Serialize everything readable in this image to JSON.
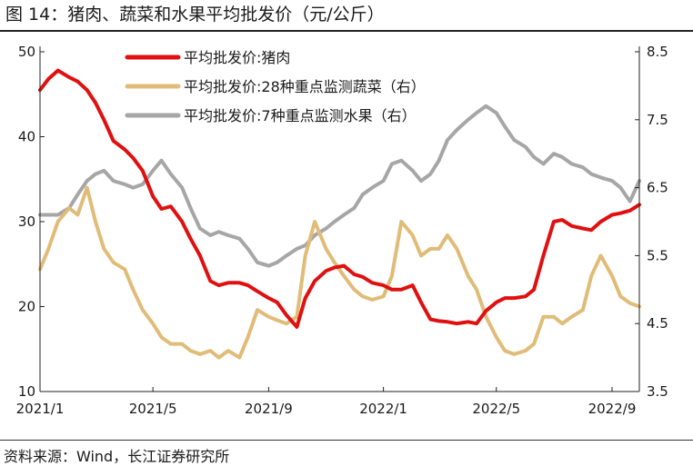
{
  "figure": {
    "title": "图 14：猪肉、蔬菜和水果平均批发价（元/公斤）",
    "source": "资料来源：Wind，长江证券研究所"
  },
  "colors": {
    "pork": "#e01010",
    "vegetable": "#e0bc78",
    "fruit": "#a6a6a6"
  },
  "chart_data": {
    "type": "line",
    "title": "猪肉、蔬菜和水果平均批发价（元/公斤）",
    "legend_position": "top-center",
    "grid": false,
    "x_ticks": [
      "2021/1",
      "2021/5",
      "2021/9",
      "2022/1",
      "2022/5",
      "2022/9"
    ],
    "x_range": [
      "2021-01-01",
      "2022-09-30"
    ],
    "y_left": {
      "range": [
        10,
        50
      ],
      "ticks": [
        10,
        20,
        30,
        40,
        50
      ]
    },
    "y_right": {
      "range": [
        3.5,
        8.5
      ],
      "ticks": [
        3.5,
        4.5,
        5.5,
        6.5,
        7.5,
        8.5
      ]
    },
    "series": [
      {
        "name": "平均批发价:猪肉",
        "axis": "left",
        "color": "#e01010",
        "points": [
          [
            "2021-01-01",
            45.5
          ],
          [
            "2021-01-10",
            46.8
          ],
          [
            "2021-01-20",
            47.8
          ],
          [
            "2021-02-01",
            47.0
          ],
          [
            "2021-02-10",
            46.5
          ],
          [
            "2021-02-20",
            45.5
          ],
          [
            "2021-03-01",
            44.0
          ],
          [
            "2021-03-10",
            42.0
          ],
          [
            "2021-03-20",
            39.5
          ],
          [
            "2021-04-01",
            38.5
          ],
          [
            "2021-04-10",
            37.5
          ],
          [
            "2021-04-20",
            36.0
          ],
          [
            "2021-05-01",
            33.0
          ],
          [
            "2021-05-10",
            31.5
          ],
          [
            "2021-05-20",
            31.8
          ],
          [
            "2021-06-01",
            30.0
          ],
          [
            "2021-06-10",
            28.0
          ],
          [
            "2021-06-20",
            26.0
          ],
          [
            "2021-07-01",
            23.0
          ],
          [
            "2021-07-10",
            22.5
          ],
          [
            "2021-07-20",
            22.8
          ],
          [
            "2021-08-01",
            22.8
          ],
          [
            "2021-08-10",
            22.5
          ],
          [
            "2021-08-20",
            21.8
          ],
          [
            "2021-09-01",
            21.0
          ],
          [
            "2021-09-10",
            20.5
          ],
          [
            "2021-09-20",
            19.0
          ],
          [
            "2021-10-01",
            17.6
          ],
          [
            "2021-10-10",
            21.0
          ],
          [
            "2021-10-20",
            23.0
          ],
          [
            "2021-11-01",
            24.2
          ],
          [
            "2021-11-10",
            24.6
          ],
          [
            "2021-11-20",
            24.8
          ],
          [
            "2021-12-01",
            23.8
          ],
          [
            "2021-12-10",
            23.5
          ],
          [
            "2021-12-20",
            22.8
          ],
          [
            "2022-01-01",
            22.5
          ],
          [
            "2022-01-10",
            22.0
          ],
          [
            "2022-01-20",
            22.0
          ],
          [
            "2022-02-01",
            22.5
          ],
          [
            "2022-02-10",
            20.5
          ],
          [
            "2022-02-20",
            18.5
          ],
          [
            "2022-03-01",
            18.3
          ],
          [
            "2022-03-10",
            18.2
          ],
          [
            "2022-03-20",
            18.0
          ],
          [
            "2022-04-01",
            18.2
          ],
          [
            "2022-04-10",
            18.0
          ],
          [
            "2022-04-20",
            19.5
          ],
          [
            "2022-05-01",
            20.5
          ],
          [
            "2022-05-10",
            21.0
          ],
          [
            "2022-05-20",
            21.0
          ],
          [
            "2022-06-01",
            21.2
          ],
          [
            "2022-06-10",
            22.0
          ],
          [
            "2022-06-20",
            26.0
          ],
          [
            "2022-07-01",
            30.0
          ],
          [
            "2022-07-10",
            30.2
          ],
          [
            "2022-07-20",
            29.5
          ],
          [
            "2022-08-01",
            29.2
          ],
          [
            "2022-08-10",
            29.0
          ],
          [
            "2022-08-20",
            30.0
          ],
          [
            "2022-09-01",
            30.8
          ],
          [
            "2022-09-10",
            31.0
          ],
          [
            "2022-09-20",
            31.3
          ],
          [
            "2022-09-30",
            32.0
          ]
        ]
      },
      {
        "name": "平均批发价:28种重点监测蔬菜（右）",
        "axis": "right",
        "color": "#e0bc78",
        "points": [
          [
            "2021-01-01",
            5.3
          ],
          [
            "2021-01-10",
            5.6
          ],
          [
            "2021-01-20",
            6.0
          ],
          [
            "2021-02-01",
            6.2
          ],
          [
            "2021-02-10",
            6.1
          ],
          [
            "2021-02-20",
            6.5
          ],
          [
            "2021-03-01",
            6.0
          ],
          [
            "2021-03-10",
            5.6
          ],
          [
            "2021-03-20",
            5.4
          ],
          [
            "2021-04-01",
            5.3
          ],
          [
            "2021-04-10",
            5.0
          ],
          [
            "2021-04-20",
            4.7
          ],
          [
            "2021-05-01",
            4.5
          ],
          [
            "2021-05-10",
            4.3
          ],
          [
            "2021-05-20",
            4.2
          ],
          [
            "2021-06-01",
            4.2
          ],
          [
            "2021-06-10",
            4.1
          ],
          [
            "2021-06-20",
            4.05
          ],
          [
            "2021-07-01",
            4.1
          ],
          [
            "2021-07-10",
            4.0
          ],
          [
            "2021-07-20",
            4.1
          ],
          [
            "2021-08-01",
            4.0
          ],
          [
            "2021-08-10",
            4.3
          ],
          [
            "2021-08-20",
            4.7
          ],
          [
            "2021-09-01",
            4.6
          ],
          [
            "2021-09-10",
            4.55
          ],
          [
            "2021-09-20",
            4.5
          ],
          [
            "2021-10-01",
            4.6
          ],
          [
            "2021-10-10",
            5.5
          ],
          [
            "2021-10-20",
            6.0
          ],
          [
            "2021-11-01",
            5.6
          ],
          [
            "2021-11-10",
            5.4
          ],
          [
            "2021-11-20",
            5.2
          ],
          [
            "2021-12-01",
            5.0
          ],
          [
            "2021-12-10",
            4.9
          ],
          [
            "2021-12-20",
            4.85
          ],
          [
            "2022-01-01",
            4.9
          ],
          [
            "2022-01-10",
            5.2
          ],
          [
            "2022-01-20",
            6.0
          ],
          [
            "2022-02-01",
            5.8
          ],
          [
            "2022-02-10",
            5.5
          ],
          [
            "2022-02-20",
            5.6
          ],
          [
            "2022-03-01",
            5.6
          ],
          [
            "2022-03-10",
            5.8
          ],
          [
            "2022-03-20",
            5.6
          ],
          [
            "2022-04-01",
            5.2
          ],
          [
            "2022-04-10",
            5.0
          ],
          [
            "2022-04-20",
            4.6
          ],
          [
            "2022-05-01",
            4.3
          ],
          [
            "2022-05-10",
            4.1
          ],
          [
            "2022-05-20",
            4.05
          ],
          [
            "2022-06-01",
            4.1
          ],
          [
            "2022-06-10",
            4.2
          ],
          [
            "2022-06-20",
            4.6
          ],
          [
            "2022-07-01",
            4.6
          ],
          [
            "2022-07-10",
            4.5
          ],
          [
            "2022-07-20",
            4.6
          ],
          [
            "2022-08-01",
            4.7
          ],
          [
            "2022-08-10",
            5.2
          ],
          [
            "2022-08-20",
            5.5
          ],
          [
            "2022-09-01",
            5.2
          ],
          [
            "2022-09-10",
            4.9
          ],
          [
            "2022-09-20",
            4.8
          ],
          [
            "2022-09-30",
            4.75
          ]
        ]
      },
      {
        "name": "平均批发价:7种重点监测水果（右）",
        "axis": "right",
        "color": "#a6a6a6",
        "points": [
          [
            "2021-01-01",
            6.1
          ],
          [
            "2021-01-10",
            6.1
          ],
          [
            "2021-01-20",
            6.1
          ],
          [
            "2021-02-01",
            6.2
          ],
          [
            "2021-02-10",
            6.4
          ],
          [
            "2021-02-20",
            6.6
          ],
          [
            "2021-03-01",
            6.7
          ],
          [
            "2021-03-10",
            6.75
          ],
          [
            "2021-03-20",
            6.6
          ],
          [
            "2021-04-01",
            6.55
          ],
          [
            "2021-04-10",
            6.5
          ],
          [
            "2021-04-20",
            6.55
          ],
          [
            "2021-05-01",
            6.75
          ],
          [
            "2021-05-10",
            6.9
          ],
          [
            "2021-05-20",
            6.7
          ],
          [
            "2021-06-01",
            6.5
          ],
          [
            "2021-06-10",
            6.2
          ],
          [
            "2021-06-20",
            5.9
          ],
          [
            "2021-07-01",
            5.8
          ],
          [
            "2021-07-10",
            5.85
          ],
          [
            "2021-07-20",
            5.8
          ],
          [
            "2021-08-01",
            5.75
          ],
          [
            "2021-08-10",
            5.6
          ],
          [
            "2021-08-20",
            5.4
          ],
          [
            "2021-09-01",
            5.35
          ],
          [
            "2021-09-10",
            5.4
          ],
          [
            "2021-09-20",
            5.5
          ],
          [
            "2021-10-01",
            5.6
          ],
          [
            "2021-10-10",
            5.65
          ],
          [
            "2021-10-20",
            5.8
          ],
          [
            "2021-11-01",
            5.9
          ],
          [
            "2021-11-10",
            6.0
          ],
          [
            "2021-11-20",
            6.1
          ],
          [
            "2021-12-01",
            6.2
          ],
          [
            "2021-12-10",
            6.4
          ],
          [
            "2021-12-20",
            6.5
          ],
          [
            "2022-01-01",
            6.6
          ],
          [
            "2022-01-10",
            6.85
          ],
          [
            "2022-01-20",
            6.9
          ],
          [
            "2022-02-01",
            6.75
          ],
          [
            "2022-02-10",
            6.6
          ],
          [
            "2022-02-20",
            6.7
          ],
          [
            "2022-03-01",
            6.9
          ],
          [
            "2022-03-10",
            7.2
          ],
          [
            "2022-03-20",
            7.35
          ],
          [
            "2022-04-01",
            7.5
          ],
          [
            "2022-04-10",
            7.6
          ],
          [
            "2022-04-20",
            7.7
          ],
          [
            "2022-05-01",
            7.6
          ],
          [
            "2022-05-10",
            7.4
          ],
          [
            "2022-05-20",
            7.2
          ],
          [
            "2022-06-01",
            7.1
          ],
          [
            "2022-06-10",
            6.95
          ],
          [
            "2022-06-20",
            6.85
          ],
          [
            "2022-07-01",
            7.0
          ],
          [
            "2022-07-10",
            6.95
          ],
          [
            "2022-07-20",
            6.85
          ],
          [
            "2022-08-01",
            6.8
          ],
          [
            "2022-08-10",
            6.7
          ],
          [
            "2022-08-20",
            6.65
          ],
          [
            "2022-09-01",
            6.6
          ],
          [
            "2022-09-10",
            6.5
          ],
          [
            "2022-09-20",
            6.3
          ],
          [
            "2022-09-30",
            6.6
          ]
        ]
      }
    ]
  }
}
